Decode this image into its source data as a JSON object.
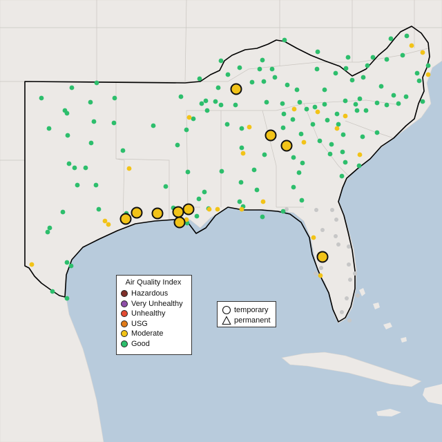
{
  "legend": {
    "title": "Air Quality Index",
    "items": [
      {
        "label": "Hazardous",
        "color": "#7e2f2a"
      },
      {
        "label": "Very Unhealthy",
        "color": "#8e4fa8"
      },
      {
        "label": "Unhealthy",
        "color": "#e24a33"
      },
      {
        "label": "USG",
        "color": "#e07b1a"
      },
      {
        "label": "Moderate",
        "color": "#f2c318"
      },
      {
        "label": "Good",
        "color": "#2dbe6c"
      }
    ]
  },
  "shape_legend": {
    "items": [
      {
        "label": "temporary",
        "icon": "circle-outline-icon"
      },
      {
        "label": "permanent",
        "icon": "triangle-outline-icon"
      }
    ]
  },
  "colors": {
    "water": "#b8cbdc",
    "land": "#ece9e6",
    "good": "#2dbe6c",
    "moderate": "#f2c318",
    "no_data": "#c7c7c7",
    "region_outline": "#000000"
  }
}
